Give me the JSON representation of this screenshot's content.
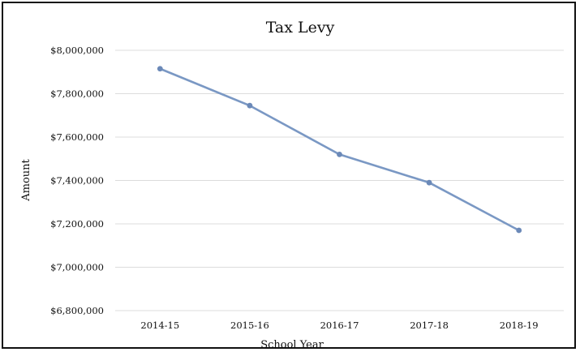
{
  "chart_data": {
    "type": "line",
    "title": "Tax Levy",
    "xlabel": "School Year",
    "ylabel": "Amount",
    "categories": [
      "2014-15",
      "2015-16",
      "2016-17",
      "2017-18",
      "2018-19"
    ],
    "series": [
      {
        "values": [
          7915000,
          7745000,
          7520000,
          7390000,
          7170000
        ]
      }
    ],
    "ylim": [
      6800000,
      8000000
    ],
    "yticks": [
      6800000,
      7000000,
      7200000,
      7400000,
      7600000,
      7800000,
      8000000
    ],
    "ytick_labels": [
      "$6,800,000",
      "$7,000,000",
      "$7,200,000",
      "$7,400,000",
      "$7,600,000",
      "$7,800,000",
      "$8,000,000"
    ],
    "grid": true,
    "legend": "none",
    "colors": {
      "series": "#7a98c4",
      "marker": "#6b89b8",
      "grid": "#dcdcdc",
      "frame": "#111111"
    }
  }
}
